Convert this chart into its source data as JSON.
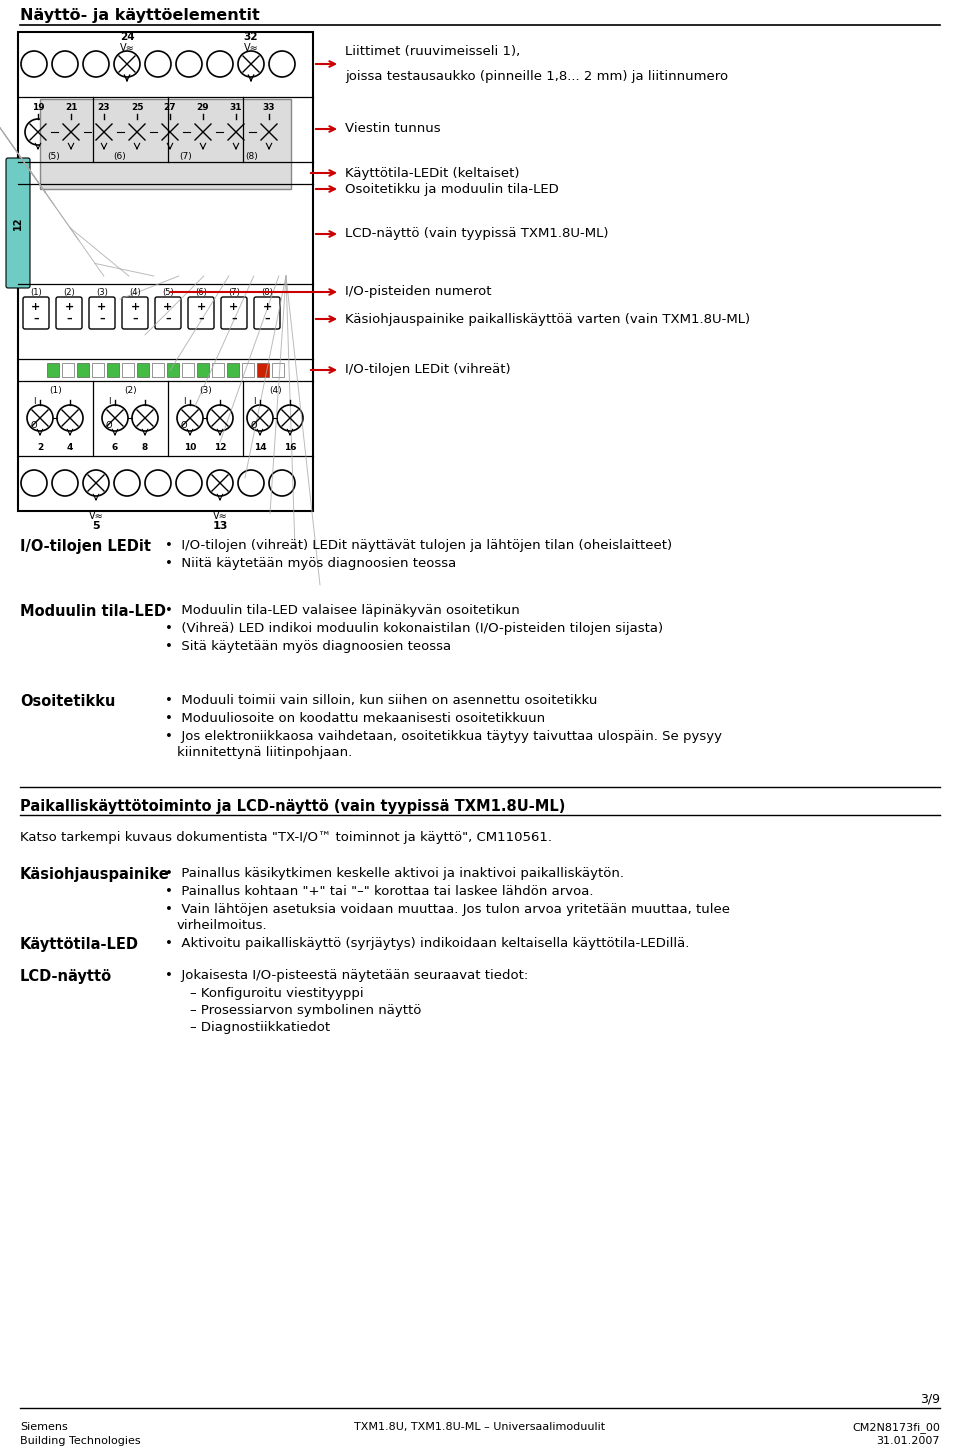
{
  "title": "Näyttö- ja käyttöelementit",
  "bg_color": "#ffffff",
  "text_color": "#000000",
  "section1_labels": {
    "label1": "Liittimet (ruuvimeisseli 1),",
    "label1b": "joissa testausaukko (pinneille 1,8... 2 mm) ja liitinnumero",
    "label2": "Viestin tunnus",
    "label3": "Käyttötila-LEDit (keltaiset)",
    "label4": "Osoitetikku ja moduulin tila-LED",
    "label5": "LCD-näyttö (vain tyypissä TXM1.8U-ML)",
    "label6": "I/O-pisteiden numerot",
    "label7": "Käsiohjauspainike paikalliskäyttöä varten (vain TXM1.8U-ML)",
    "label8": "I/O-tilojen LEDit (vihreät)"
  },
  "section2_title": "I/O-tilojen LEDit",
  "section2_bullets": [
    "I/O-tilojen (vihreät) LEDit näyttävät tulojen ja lähtöjen tilan (oheislaitteet)",
    "Niitä käytetään myös diagnoosien teossa"
  ],
  "section3_title": "Moduulin tila-LED",
  "section3_bullets": [
    "Moduulin tila-LED valaisee läpinäkyvän osoitetikun",
    "(Vihreä) LED indikoi moduulin kokonaistilan (I/O-pisteiden tilojen sijasta)",
    "Sitä käytetään myös diagnoosien teossa"
  ],
  "section4_title": "Osoitetikku",
  "section4_bullets_1": "Moduuli toimii vain silloin, kun siihen on asennettu osoitetikku",
  "section4_bullets_2": "Moduuliosoite on koodattu mekaanisesti osoitetikkuun",
  "section4_bullets_3": "Jos elektroniikkaosa vaihdetaan, osoitetikkua täytyy taivuttaa ulospäin. Se pysyy",
  "section4_bullets_3b": "kiinnitettynä liitinpohjaan.",
  "section5_title": "Paikalliskäyttötoiminto ja LCD-näyttö (vain tyypissä TXM1.8U-ML)",
  "section5_intro": "Katso tarkempi kuvaus dokumentista \"TX-I/O™ toiminnot ja käyttö\", CM110561.",
  "section6_title": "Käsiohjauspainike",
  "section6_bullets_1": "Painallus käsikytkimen keskelle aktivoi ja inaktivoi paikalliskäytön.",
  "section6_bullets_2": "Painallus kohtaan \"+\" tai \"–\" korottaa tai laskee lähdön arvoa.",
  "section6_bullets_3": "Vain lähtöjen asetuksia voidaan muuttaa. Jos tulon arvoa yritetään muuttaa, tulee",
  "section6_bullets_3b": "virheilmoitus.",
  "section7_title": "Käyttötila-LED",
  "section7_bullet": "Aktivoitu paikalliskäyttö (syrjäytys) indikoidaan keltaisella käyttötila-LEDillä.",
  "section8_title": "LCD-näyttö",
  "section8_bullet_0": "Jokaisesta I/O-pisteestä näytetään seuraavat tiedot:",
  "section8_bullet_1": "– Konfiguroitu viestityyppi",
  "section8_bullet_2": "– Prosessiarvon symbolinen näyttö",
  "section8_bullet_3": "– Diagnostiikkatiedot",
  "footer_left1": "Siemens",
  "footer_left2": "Building Technologies",
  "footer_center": "TXM1.8U, TXM1.8U-ML – Universaalimoduulit",
  "footer_right1": "CM2N8173fi_00",
  "footer_right2": "31.01.2007",
  "footer_page": "3/9",
  "led_yellow": "#d4870a",
  "led_green": "#44bb44",
  "led_red": "#cc2200",
  "teal_color": "#6eccc4"
}
